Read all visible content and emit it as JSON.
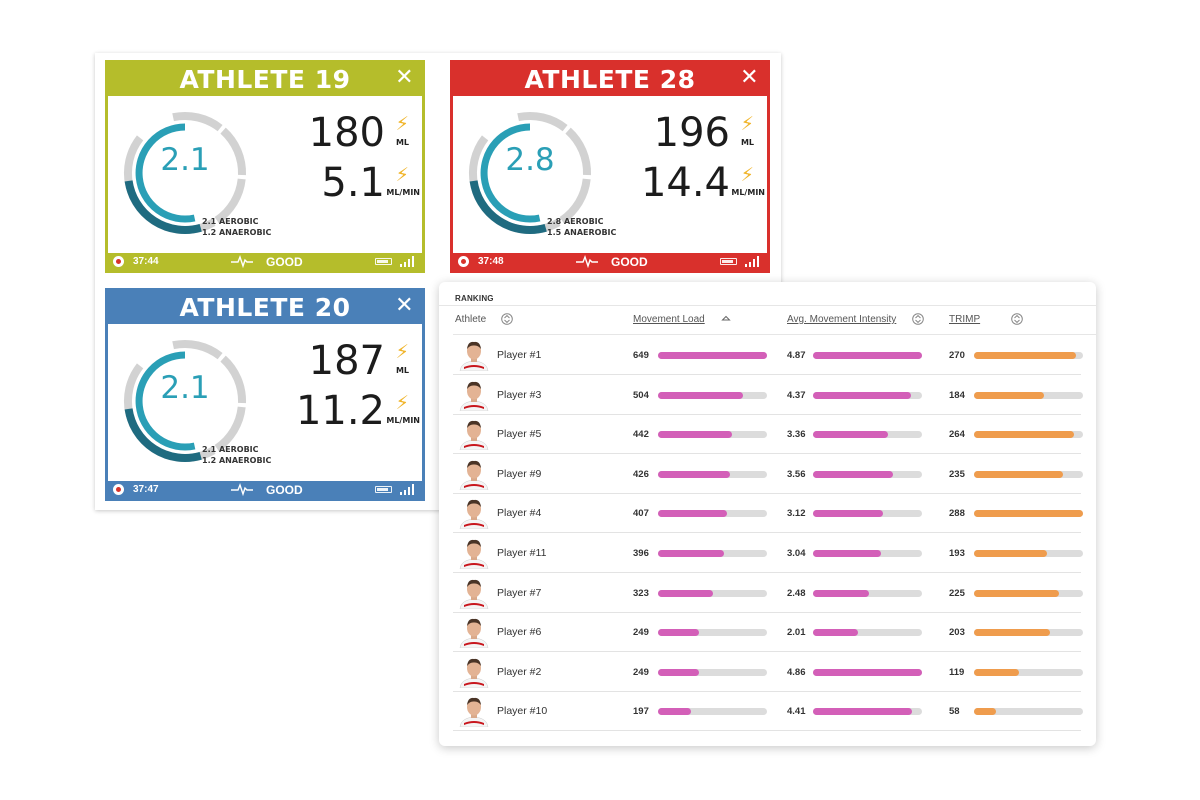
{
  "cards": [
    {
      "title": "ATHLETE 19",
      "color": "#b5bd2b",
      "ring_value": "2.1",
      "aerobic": "2.1 AEROBIC",
      "anaerobic": "1.2 ANAEROBIC",
      "metric1": "180",
      "unit1": "ML",
      "metric2": "5.1",
      "unit2": "ML/MIN",
      "time": "37:44",
      "status": "GOOD",
      "close": "✕"
    },
    {
      "title": "ATHLETE 28",
      "color": "#d9302c",
      "ring_value": "2.8",
      "aerobic": "2.8 AEROBIC",
      "anaerobic": "1.5 ANAEROBIC",
      "metric1": "196",
      "unit1": "ML",
      "metric2": "14.4",
      "unit2": "ML/MIN",
      "time": "37:48",
      "status": "GOOD",
      "close": "✕"
    },
    {
      "title": "ATHLETE 20",
      "color": "#4a80b8",
      "ring_value": "2.1",
      "aerobic": "2.1 AEROBIC",
      "anaerobic": "1.2 ANAEROBIC",
      "metric1": "187",
      "unit1": "ML",
      "metric2": "11.2",
      "unit2": "ML/MIN",
      "time": "37:47",
      "status": "GOOD",
      "close": "✕"
    }
  ],
  "ranking": {
    "title": "RANKING",
    "columns": {
      "athlete": "Athlete",
      "load": "Movement Load",
      "intensity": "Avg. Movement Intensity",
      "trimp": "TRIMP"
    },
    "colors": {
      "load": "#d35fb8",
      "intensity": "#d35fb8",
      "trimp": "#ef9c4d"
    },
    "rows": [
      {
        "name": "Player #1",
        "load": "649",
        "load_fill": 1.0,
        "intensity": "4.87",
        "intensity_fill": 1.0,
        "trimp": "270",
        "trimp_fill": 0.94
      },
      {
        "name": "Player #3",
        "load": "504",
        "load_fill": 0.78,
        "intensity": "4.37",
        "intensity_fill": 0.9,
        "trimp": "184",
        "trimp_fill": 0.64
      },
      {
        "name": "Player #5",
        "load": "442",
        "load_fill": 0.68,
        "intensity": "3.36",
        "intensity_fill": 0.69,
        "trimp": "264",
        "trimp_fill": 0.92
      },
      {
        "name": "Player #9",
        "load": "426",
        "load_fill": 0.66,
        "intensity": "3.56",
        "intensity_fill": 0.73,
        "trimp": "235",
        "trimp_fill": 0.82
      },
      {
        "name": "Player #4",
        "load": "407",
        "load_fill": 0.63,
        "intensity": "3.12",
        "intensity_fill": 0.64,
        "trimp": "288",
        "trimp_fill": 1.0
      },
      {
        "name": "Player #11",
        "load": "396",
        "load_fill": 0.61,
        "intensity": "3.04",
        "intensity_fill": 0.62,
        "trimp": "193",
        "trimp_fill": 0.67
      },
      {
        "name": "Player #7",
        "load": "323",
        "load_fill": 0.5,
        "intensity": "2.48",
        "intensity_fill": 0.51,
        "trimp": "225",
        "trimp_fill": 0.78
      },
      {
        "name": "Player #6",
        "load": "249",
        "load_fill": 0.38,
        "intensity": "2.01",
        "intensity_fill": 0.41,
        "trimp": "203",
        "trimp_fill": 0.7
      },
      {
        "name": "Player #2",
        "load": "249",
        "load_fill": 0.38,
        "intensity": "4.86",
        "intensity_fill": 1.0,
        "trimp": "119",
        "trimp_fill": 0.41
      },
      {
        "name": "Player #10",
        "load": "197",
        "load_fill": 0.3,
        "intensity": "4.41",
        "intensity_fill": 0.91,
        "trimp": "58",
        "trimp_fill": 0.2
      }
    ]
  }
}
